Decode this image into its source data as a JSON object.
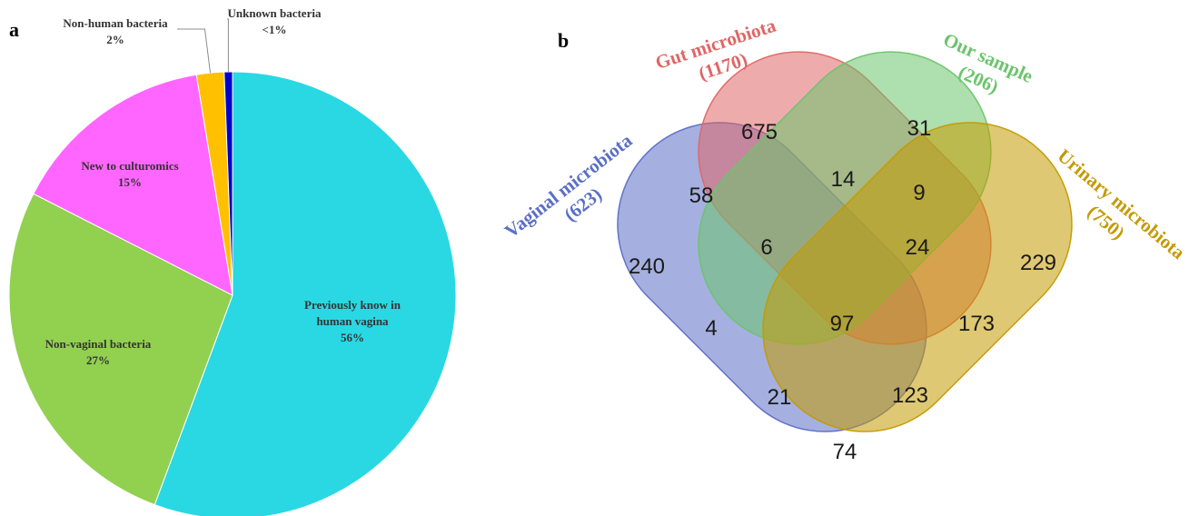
{
  "panel_a": {
    "letter": "a"
  },
  "panel_b": {
    "letter": "b"
  },
  "chart_data": [
    {
      "type": "pie",
      "slices": [
        {
          "label": [
            "Previously know in",
            "human vagina"
          ],
          "pct_text": "56%",
          "value": 56,
          "color": "#29d8e3"
        },
        {
          "label": [
            "Non-vaginal bacteria"
          ],
          "pct_text": "27%",
          "value": 27,
          "color": "#92d050"
        },
        {
          "label": [
            "New to culturomics"
          ],
          "pct_text": "15%",
          "value": 15,
          "color": "#ff66ff"
        },
        {
          "label": [
            "Non-human bacteria"
          ],
          "pct_text": "2%",
          "value": 2,
          "color": "#ffc000"
        },
        {
          "label": [
            "Unknown bacteria"
          ],
          "pct_text": "<1%",
          "value": 0.6,
          "color": "#0000cc"
        }
      ]
    },
    {
      "type": "venn",
      "sets": [
        {
          "name": "Vaginal microbiota",
          "count_text": "(623)",
          "color": "#5b6fc6"
        },
        {
          "name": "Gut microbiota",
          "count_text": "(1170)",
          "color": "#e06666"
        },
        {
          "name": "Our sample",
          "count_text": "(206)",
          "color": "#6cc46c"
        },
        {
          "name": "Urinary microbiota",
          "count_text": "(750)",
          "color": "#c49a00"
        }
      ],
      "regions": [
        {
          "sets": [
            "Gut microbiota"
          ],
          "value": 675
        },
        {
          "sets": [
            "Our sample"
          ],
          "value": 31
        },
        {
          "sets": [
            "Vaginal microbiota",
            "Gut microbiota"
          ],
          "value": 58
        },
        {
          "sets": [
            "Gut microbiota",
            "Our sample"
          ],
          "value": 14
        },
        {
          "sets": [
            "Our sample",
            "Urinary microbiota"
          ],
          "value": 9
        },
        {
          "sets": [
            "Vaginal microbiota"
          ],
          "value": 240
        },
        {
          "sets": [
            "Vaginal microbiota",
            "Gut microbiota",
            "Our sample"
          ],
          "value": 6
        },
        {
          "sets": [
            "Gut microbiota",
            "Our sample",
            "Urinary microbiota"
          ],
          "value": 24
        },
        {
          "sets": [
            "Urinary microbiota"
          ],
          "value": 229
        },
        {
          "sets": [
            "Vaginal microbiota",
            "Our sample"
          ],
          "value": 4
        },
        {
          "sets": [
            "Vaginal microbiota",
            "Gut microbiota",
            "Our sample",
            "Urinary microbiota"
          ],
          "value": 97
        },
        {
          "sets": [
            "Gut microbiota",
            "Urinary microbiota"
          ],
          "value": 173
        },
        {
          "sets": [
            "Vaginal microbiota",
            "Our sample",
            "Urinary microbiota"
          ],
          "value": 21
        },
        {
          "sets": [
            "Vaginal microbiota",
            "Gut microbiota",
            "Urinary microbiota"
          ],
          "value": 123
        },
        {
          "sets": [
            "Vaginal microbiota",
            "Urinary microbiota"
          ],
          "value": 74
        }
      ]
    }
  ]
}
